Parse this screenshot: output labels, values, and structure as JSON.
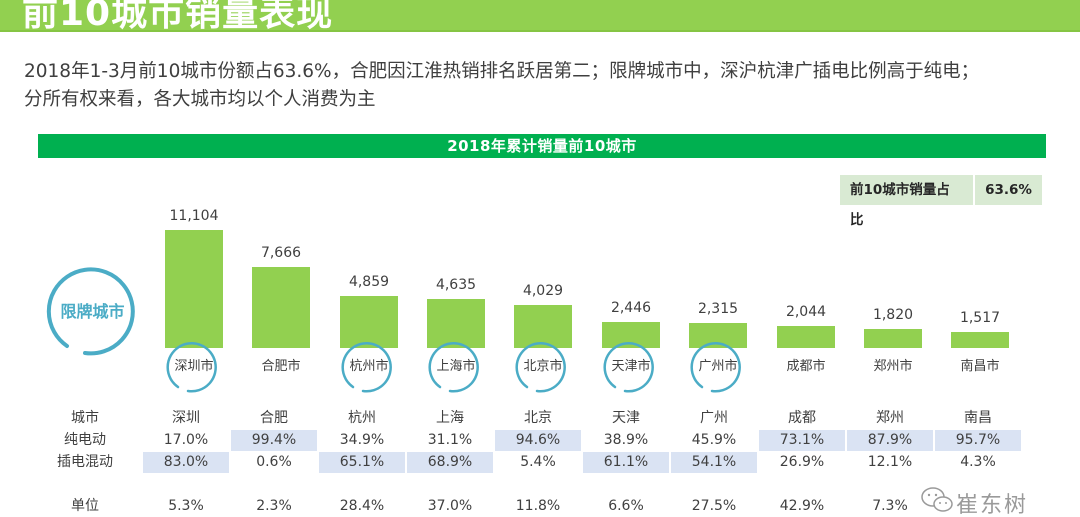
{
  "header": {
    "title": "前10城市销量表现"
  },
  "summary": {
    "line1": "2018年1-3月前10城市份额占63.6%，合肥因江淮热销排名跃居第二；限牌城市中，深沪杭津广插电比例高于纯电；",
    "line2": "分所有权来看，各大城市均以个人消费为主"
  },
  "chart_banner": {
    "title": "2018年累计销量前10城市"
  },
  "share_box": {
    "label": "前10城市销量占比",
    "value": "63.6%"
  },
  "restricted_badge": {
    "label": "限牌城市"
  },
  "colors": {
    "header_bg": "#92d050",
    "banner_bg": "#00b050",
    "bar": "#92d050",
    "ring": "#4bacc6",
    "highlight_cell": "#dae3f3",
    "share_box_bg": "#d9ead3"
  },
  "chart_data": {
    "type": "bar",
    "title": "2018年累计销量前10城市",
    "xlabel": "",
    "ylabel": "",
    "grid": false,
    "legend": "none",
    "categories": [
      "深圳市",
      "合肥市",
      "杭州市",
      "上海市",
      "北京市",
      "天津市",
      "广州市",
      "成都市",
      "郑州市",
      "南昌市"
    ],
    "values": [
      11104,
      7666,
      4859,
      4635,
      4029,
      2446,
      2315,
      2044,
      1820,
      1517
    ],
    "value_labels": [
      "11,104",
      "7,666",
      "4,859",
      "4,635",
      "4,029",
      "2,446",
      "2,315",
      "2,044",
      "1,820",
      "1,517"
    ],
    "restricted_cities": [
      "深圳市",
      "杭州市",
      "上海市",
      "北京市",
      "天津市",
      "广州市"
    ],
    "annotation": "前10城市销量占比 63.6%"
  },
  "table": {
    "row_labels": {
      "city": "城市",
      "bev": "纯电动",
      "phev": "插电混动",
      "unit": "单位"
    },
    "columns": [
      {
        "city": "深圳",
        "bev": "17.0%",
        "phev": "83.0%",
        "unit": "5.3%",
        "hl": "phev"
      },
      {
        "city": "合肥",
        "bev": "99.4%",
        "phev": "0.6%",
        "unit": "2.3%",
        "hl": "bev"
      },
      {
        "city": "杭州",
        "bev": "34.9%",
        "phev": "65.1%",
        "unit": "28.4%",
        "hl": "phev"
      },
      {
        "city": "上海",
        "bev": "31.1%",
        "phev": "68.9%",
        "unit": "37.0%",
        "hl": "phev"
      },
      {
        "city": "北京",
        "bev": "94.6%",
        "phev": "5.4%",
        "unit": "11.8%",
        "hl": "bev"
      },
      {
        "city": "天津",
        "bev": "38.9%",
        "phev": "61.1%",
        "unit": "6.6%",
        "hl": "phev"
      },
      {
        "city": "广州",
        "bev": "45.9%",
        "phev": "54.1%",
        "unit": "27.5%",
        "hl": "phev"
      },
      {
        "city": "成都",
        "bev": "73.1%",
        "phev": "26.9%",
        "unit": "42.9%",
        "hl": "bev"
      },
      {
        "city": "郑州",
        "bev": "87.9%",
        "phev": "12.1%",
        "unit": "7.3%",
        "hl": "bev"
      },
      {
        "city": "南昌",
        "bev": "95.7%",
        "phev": "4.3%",
        "unit": "",
        "hl": "bev"
      }
    ]
  },
  "watermark": {
    "text": "崔东树",
    "icon": "wechat-icon"
  }
}
